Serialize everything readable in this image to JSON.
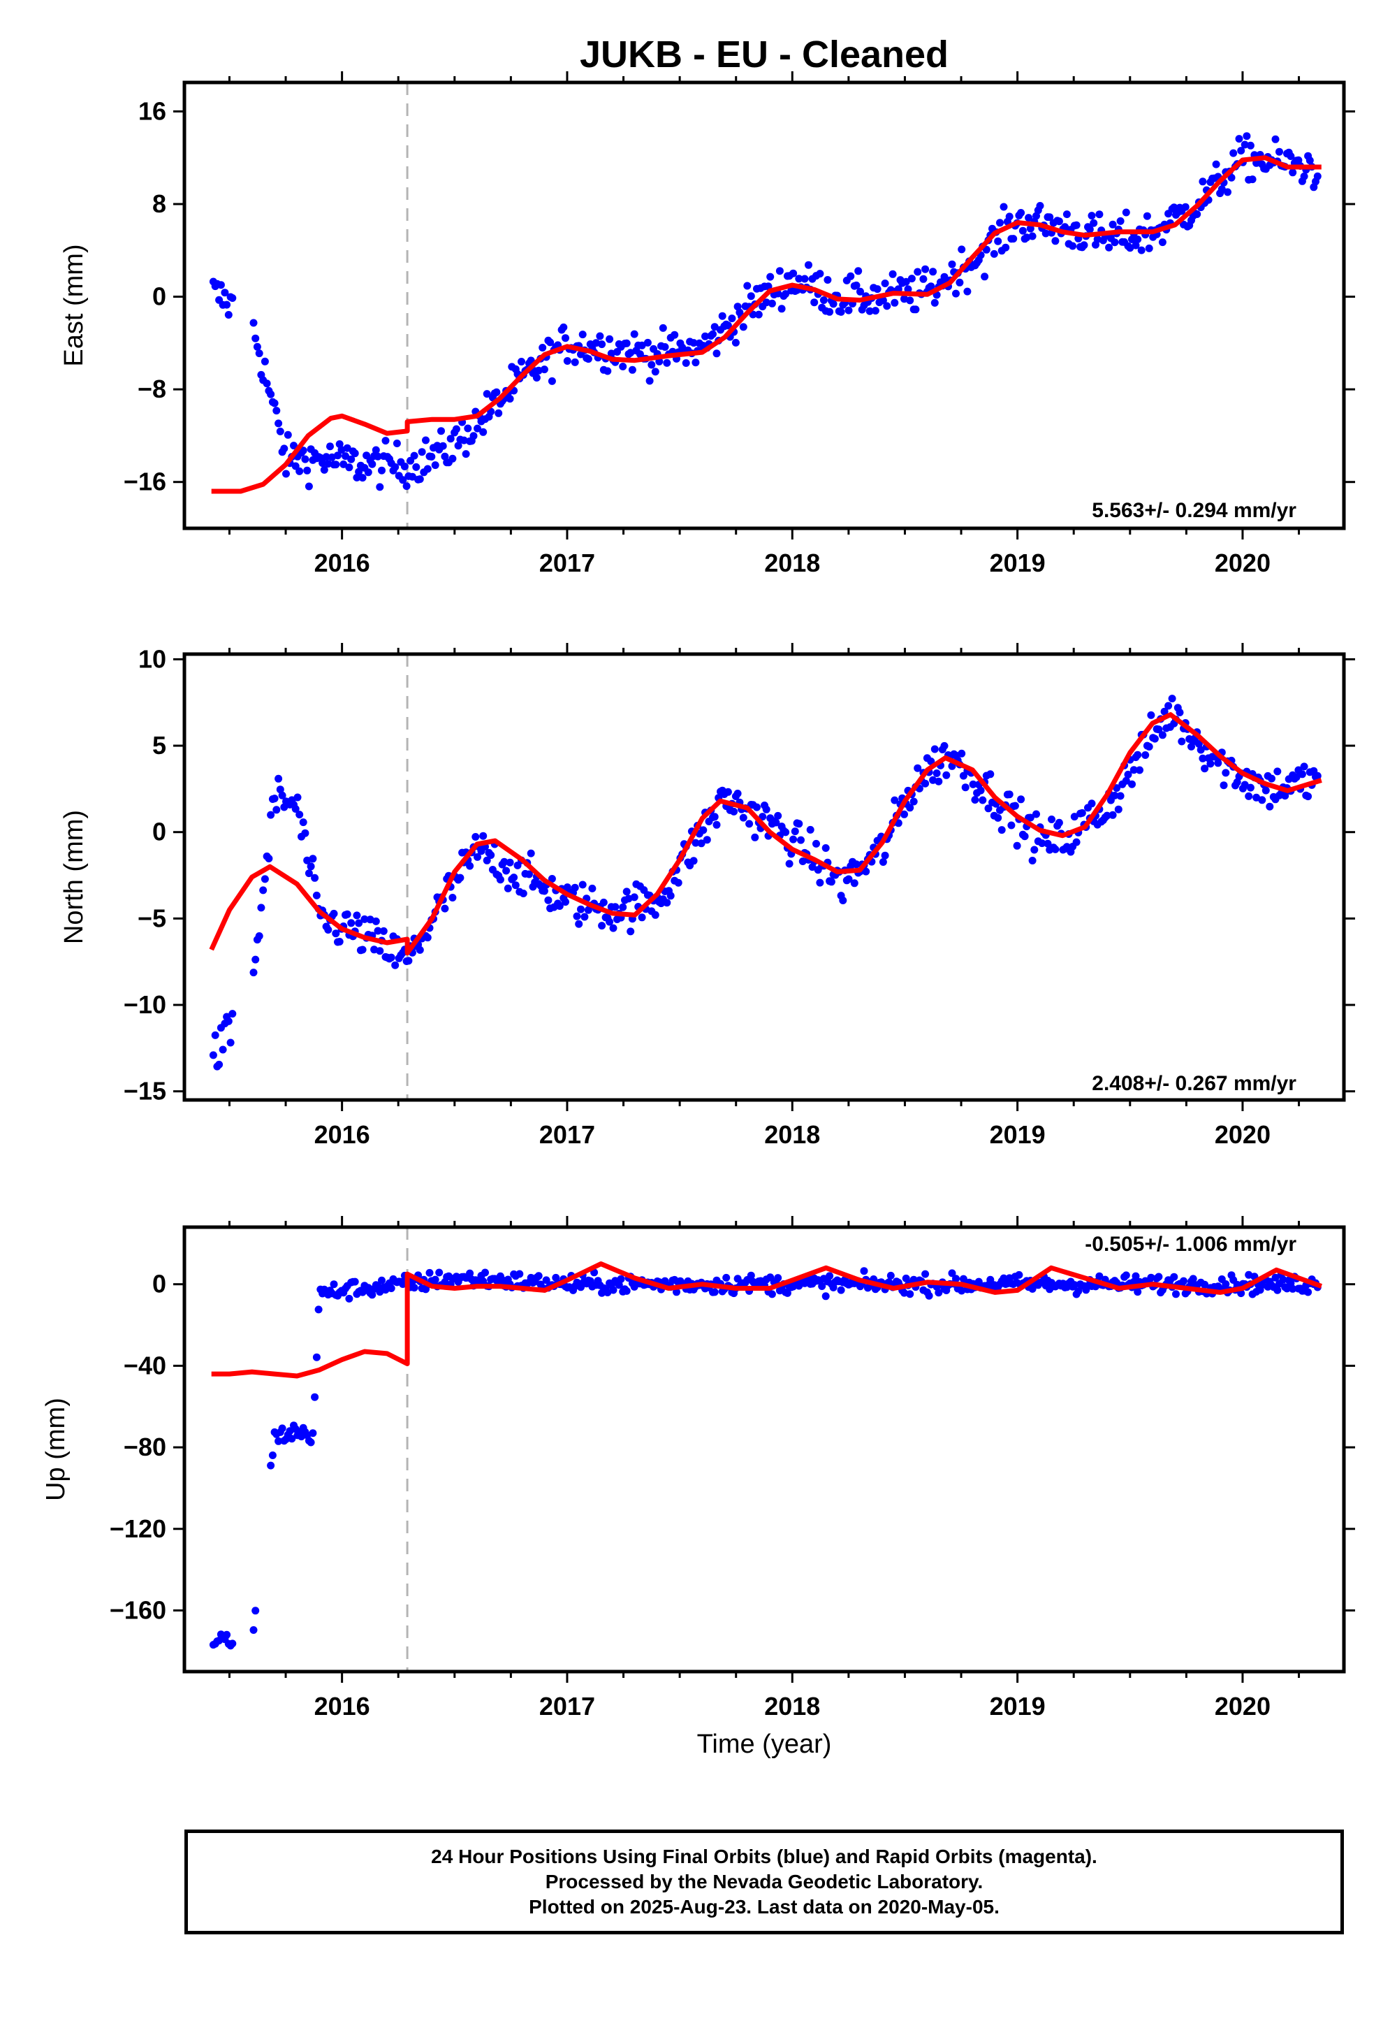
{
  "title": "JUKB  - EU - Cleaned",
  "footer": {
    "line1": "24 Hour Positions Using Final Orbits (blue) and Rapid Orbits (magenta).",
    "line2": "Processed by the Nevada Geodetic Laboratory.",
    "line3": "Plotted on 2025-Aug-23. Last data on 2020-May-05."
  },
  "colors": {
    "data": "#0000ff",
    "model": "#ff0000",
    "event_line": "#b4b4b4",
    "frame": "#000000"
  },
  "chart_data": [
    {
      "type": "scatter",
      "ylabel": "East (mm)",
      "xlabel": "",
      "xlim": [
        2015.3,
        2020.45
      ],
      "ylim": [
        -20,
        18.5
      ],
      "yticks": [
        -16,
        -8,
        0,
        8,
        16
      ],
      "xticks": [
        2016,
        2017,
        2018,
        2019,
        2020
      ],
      "rate_text": "5.563+/- 0.294 mm/yr",
      "event_line_x": 2016.29,
      "model_line": {
        "x": [
          2015.42,
          2015.55,
          2015.65,
          2015.75,
          2015.85,
          2015.95,
          2016.0,
          2016.1,
          2016.2,
          2016.29,
          2016.29,
          2016.4,
          2016.5,
          2016.6,
          2016.7,
          2016.8,
          2016.9,
          2017.0,
          2017.1,
          2017.2,
          2017.3,
          2017.45,
          2017.6,
          2017.7,
          2017.8,
          2017.9,
          2018.0,
          2018.1,
          2018.2,
          2018.3,
          2018.45,
          2018.6,
          2018.7,
          2018.8,
          2018.9,
          2019.0,
          2019.1,
          2019.2,
          2019.3,
          2019.45,
          2019.6,
          2019.7,
          2019.8,
          2019.9,
          2020.0,
          2020.1,
          2020.2,
          2020.35
        ],
        "y": [
          -16.8,
          -16.8,
          -16.2,
          -14.5,
          -12.0,
          -10.5,
          -10.3,
          -11.0,
          -11.8,
          -11.6,
          -10.8,
          -10.6,
          -10.6,
          -10.3,
          -8.8,
          -6.8,
          -5.0,
          -4.3,
          -4.7,
          -5.4,
          -5.5,
          -5.1,
          -4.8,
          -3.5,
          -1.4,
          0.5,
          1.0,
          0.6,
          -0.2,
          -0.3,
          0.3,
          0.2,
          1.2,
          3.4,
          5.5,
          6.4,
          6.2,
          5.6,
          5.3,
          5.6,
          5.6,
          6.2,
          7.9,
          10.0,
          11.8,
          12.0,
          11.2,
          11.2
        ]
      },
      "point_trend": {
        "x": [
          2015.42,
          2015.6,
          2015.75,
          2015.9,
          2016.1,
          2016.29,
          2016.45,
          2016.6,
          2016.75,
          2016.9,
          2017.0,
          2017.2,
          2017.4,
          2017.6,
          2017.8,
          2018.0,
          2018.2,
          2018.4,
          2018.6,
          2018.8,
          2019.0,
          2019.2,
          2019.4,
          2019.6,
          2019.8,
          2020.0,
          2020.2,
          2020.35
        ],
        "y": [
          0.5,
          -2.0,
          -14.0,
          -14.0,
          -14.5,
          -14.5,
          -13.5,
          -11.0,
          -8.0,
          -5.5,
          -4.0,
          -4.5,
          -5.0,
          -4.5,
          -1.0,
          1.5,
          0.0,
          0.0,
          0.5,
          3.0,
          6.5,
          6.0,
          5.0,
          5.5,
          8.0,
          12.0,
          11.5,
          11.0
        ]
      }
    },
    {
      "type": "scatter",
      "ylabel": "North (mm)",
      "xlabel": "",
      "xlim": [
        2015.3,
        2020.45
      ],
      "ylim": [
        -15.5,
        10.3
      ],
      "yticks": [
        -15,
        -10,
        -5,
        0,
        5,
        10
      ],
      "xticks": [
        2016,
        2017,
        2018,
        2019,
        2020
      ],
      "rate_text": "2.408+/- 0.267 mm/yr",
      "event_line_x": 2016.29,
      "model_line": {
        "x": [
          2015.42,
          2015.5,
          2015.6,
          2015.68,
          2015.8,
          2015.9,
          2016.0,
          2016.1,
          2016.2,
          2016.29,
          2016.29,
          2016.4,
          2016.5,
          2016.6,
          2016.68,
          2016.8,
          2016.9,
          2017.0,
          2017.1,
          2017.2,
          2017.3,
          2017.4,
          2017.5,
          2017.6,
          2017.68,
          2017.8,
          2017.9,
          2018.0,
          2018.1,
          2018.2,
          2018.3,
          2018.4,
          2018.5,
          2018.6,
          2018.68,
          2018.8,
          2018.9,
          2019.0,
          2019.1,
          2019.2,
          2019.3,
          2019.4,
          2019.5,
          2019.6,
          2019.68,
          2019.8,
          2019.9,
          2020.0,
          2020.1,
          2020.2,
          2020.35
        ],
        "y": [
          -6.8,
          -4.5,
          -2.6,
          -2.0,
          -3.0,
          -4.6,
          -5.6,
          -6.1,
          -6.4,
          -6.2,
          -7.0,
          -5.0,
          -2.3,
          -0.7,
          -0.5,
          -1.6,
          -2.8,
          -3.6,
          -4.2,
          -4.7,
          -4.8,
          -3.6,
          -1.6,
          0.8,
          1.8,
          1.4,
          0.0,
          -1.0,
          -1.6,
          -2.3,
          -2.2,
          -0.6,
          1.8,
          3.6,
          4.3,
          3.6,
          2.0,
          0.9,
          0.1,
          -0.2,
          0.3,
          2.2,
          4.6,
          6.3,
          6.8,
          5.6,
          4.4,
          3.4,
          2.8,
          2.4,
          3.0
        ]
      },
      "point_trend": {
        "x": [
          2015.42,
          2015.5,
          2015.6,
          2015.7,
          2015.8,
          2015.9,
          2016.1,
          2016.29,
          2016.45,
          2016.6,
          2016.8,
          2017.0,
          2017.2,
          2017.4,
          2017.6,
          2017.7,
          2017.9,
          2018.1,
          2018.22,
          2018.4,
          2018.55,
          2018.7,
          2018.9,
          2019.1,
          2019.2,
          2019.4,
          2019.6,
          2019.68,
          2019.9,
          2020.1,
          2020.35
        ],
        "y": [
          -13.5,
          -11.5,
          -9.0,
          2.0,
          1.5,
          -5.0,
          -6.0,
          -7.5,
          -4.0,
          -1.0,
          -2.5,
          -4.0,
          -4.5,
          -4.0,
          0.0,
          2.0,
          0.5,
          -1.5,
          -3.0,
          -1.0,
          3.0,
          4.5,
          2.0,
          -0.5,
          -0.5,
          1.5,
          5.5,
          7.0,
          4.0,
          2.5,
          3.0
        ]
      }
    },
    {
      "type": "scatter",
      "ylabel": "Up (mm)",
      "xlabel": "Time (year)",
      "xlim": [
        2015.3,
        2020.45
      ],
      "ylim": [
        -190,
        28
      ],
      "yticks": [
        -160,
        -120,
        -80,
        -40,
        0
      ],
      "xticks": [
        2016,
        2017,
        2018,
        2019,
        2020
      ],
      "rate_text": "-0.505+/- 1.006 mm/yr",
      "event_line_x": 2016.29,
      "model_line": {
        "x": [
          2015.42,
          2015.5,
          2015.6,
          2015.7,
          2015.8,
          2015.9,
          2016.0,
          2016.1,
          2016.2,
          2016.29,
          2016.29,
          2016.4,
          2016.5,
          2016.6,
          2016.7,
          2016.8,
          2016.9,
          2017.0,
          2017.15,
          2017.3,
          2017.45,
          2017.6,
          2017.75,
          2017.9,
          2018.0,
          2018.15,
          2018.3,
          2018.45,
          2018.6,
          2018.75,
          2018.9,
          2019.0,
          2019.15,
          2019.3,
          2019.45,
          2019.6,
          2019.75,
          2019.9,
          2020.0,
          2020.15,
          2020.35
        ],
        "y": [
          -44,
          -44,
          -43,
          -44,
          -45,
          -42,
          -37,
          -33,
          -34,
          -39,
          5,
          -1,
          -2,
          -1,
          -1,
          -2,
          -3,
          2,
          10,
          3,
          -2,
          0,
          -2,
          -2,
          2,
          8,
          2,
          -2,
          1,
          0,
          -4,
          -3,
          8,
          3,
          -2,
          0,
          -2,
          -4,
          -2,
          7,
          -1
        ]
      },
      "point_trend": {
        "x": [
          2015.42,
          2015.5,
          2015.6,
          2015.7,
          2015.8,
          2015.87,
          2015.9,
          2016.0,
          2016.29,
          2016.5,
          2017.0,
          2017.5,
          2018.0,
          2018.5,
          2019.0,
          2019.5,
          2020.0,
          2020.35
        ],
        "y": [
          -175,
          -175,
          -176,
          -75,
          -72,
          -75,
          -5,
          -3,
          0,
          3,
          0,
          0,
          0,
          0,
          0,
          0,
          0,
          0
        ]
      }
    }
  ]
}
